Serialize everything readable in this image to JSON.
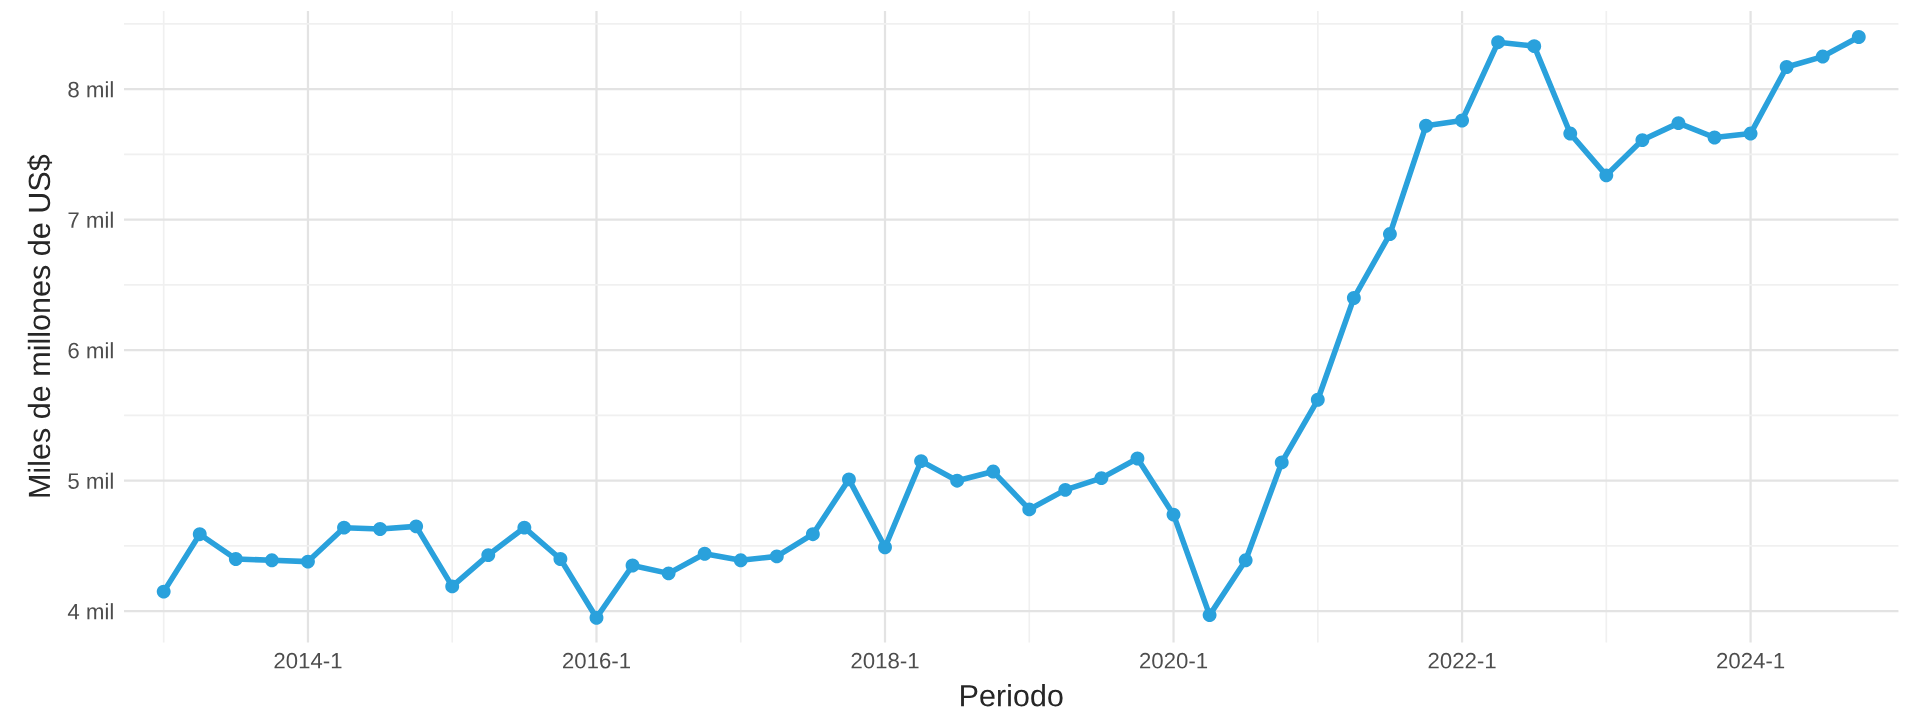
{
  "chart_data": {
    "type": "line",
    "xlabel": "Periodo",
    "ylabel": "Miles de millones de US$",
    "categories": [
      null,
      null,
      null,
      null,
      "2014-1",
      null,
      null,
      null,
      null,
      null,
      null,
      null,
      "2016-1",
      null,
      null,
      null,
      null,
      null,
      null,
      null,
      "2018-1",
      null,
      null,
      null,
      null,
      null,
      null,
      null,
      "2020-1",
      null,
      null,
      null,
      null,
      null,
      null,
      null,
      "2022-1",
      null,
      null,
      null,
      null,
      null,
      null,
      null,
      "2024-1",
      null,
      null,
      null
    ],
    "series": [
      {
        "color": "#2aa1dc",
        "values": [
          4.15,
          4.59,
          4.4,
          4.39,
          4.38,
          4.64,
          4.63,
          4.65,
          4.19,
          4.43,
          4.64,
          4.4,
          3.95,
          4.35,
          4.29,
          4.44,
          4.39,
          4.42,
          4.59,
          5.01,
          4.49,
          5.15,
          5.0,
          5.07,
          4.78,
          4.93,
          5.02,
          5.17,
          4.74,
          3.97,
          4.39,
          5.14,
          5.62,
          6.4,
          6.89,
          7.72,
          7.76,
          8.36,
          8.33,
          7.66,
          7.34,
          7.61,
          7.74,
          7.63,
          7.66,
          8.17,
          8.25,
          8.4
        ]
      }
    ],
    "ylim": [
      3.76,
      8.6
    ],
    "yticks": [
      {
        "value": 4,
        "label": "4 mil"
      },
      {
        "value": 5,
        "label": "5 mil"
      },
      {
        "value": 6,
        "label": "6 mil"
      },
      {
        "value": 7,
        "label": "7 mil"
      },
      {
        "value": 8,
        "label": "8 mil"
      }
    ],
    "grid": true,
    "marker": "circle",
    "line_style": "solid"
  }
}
